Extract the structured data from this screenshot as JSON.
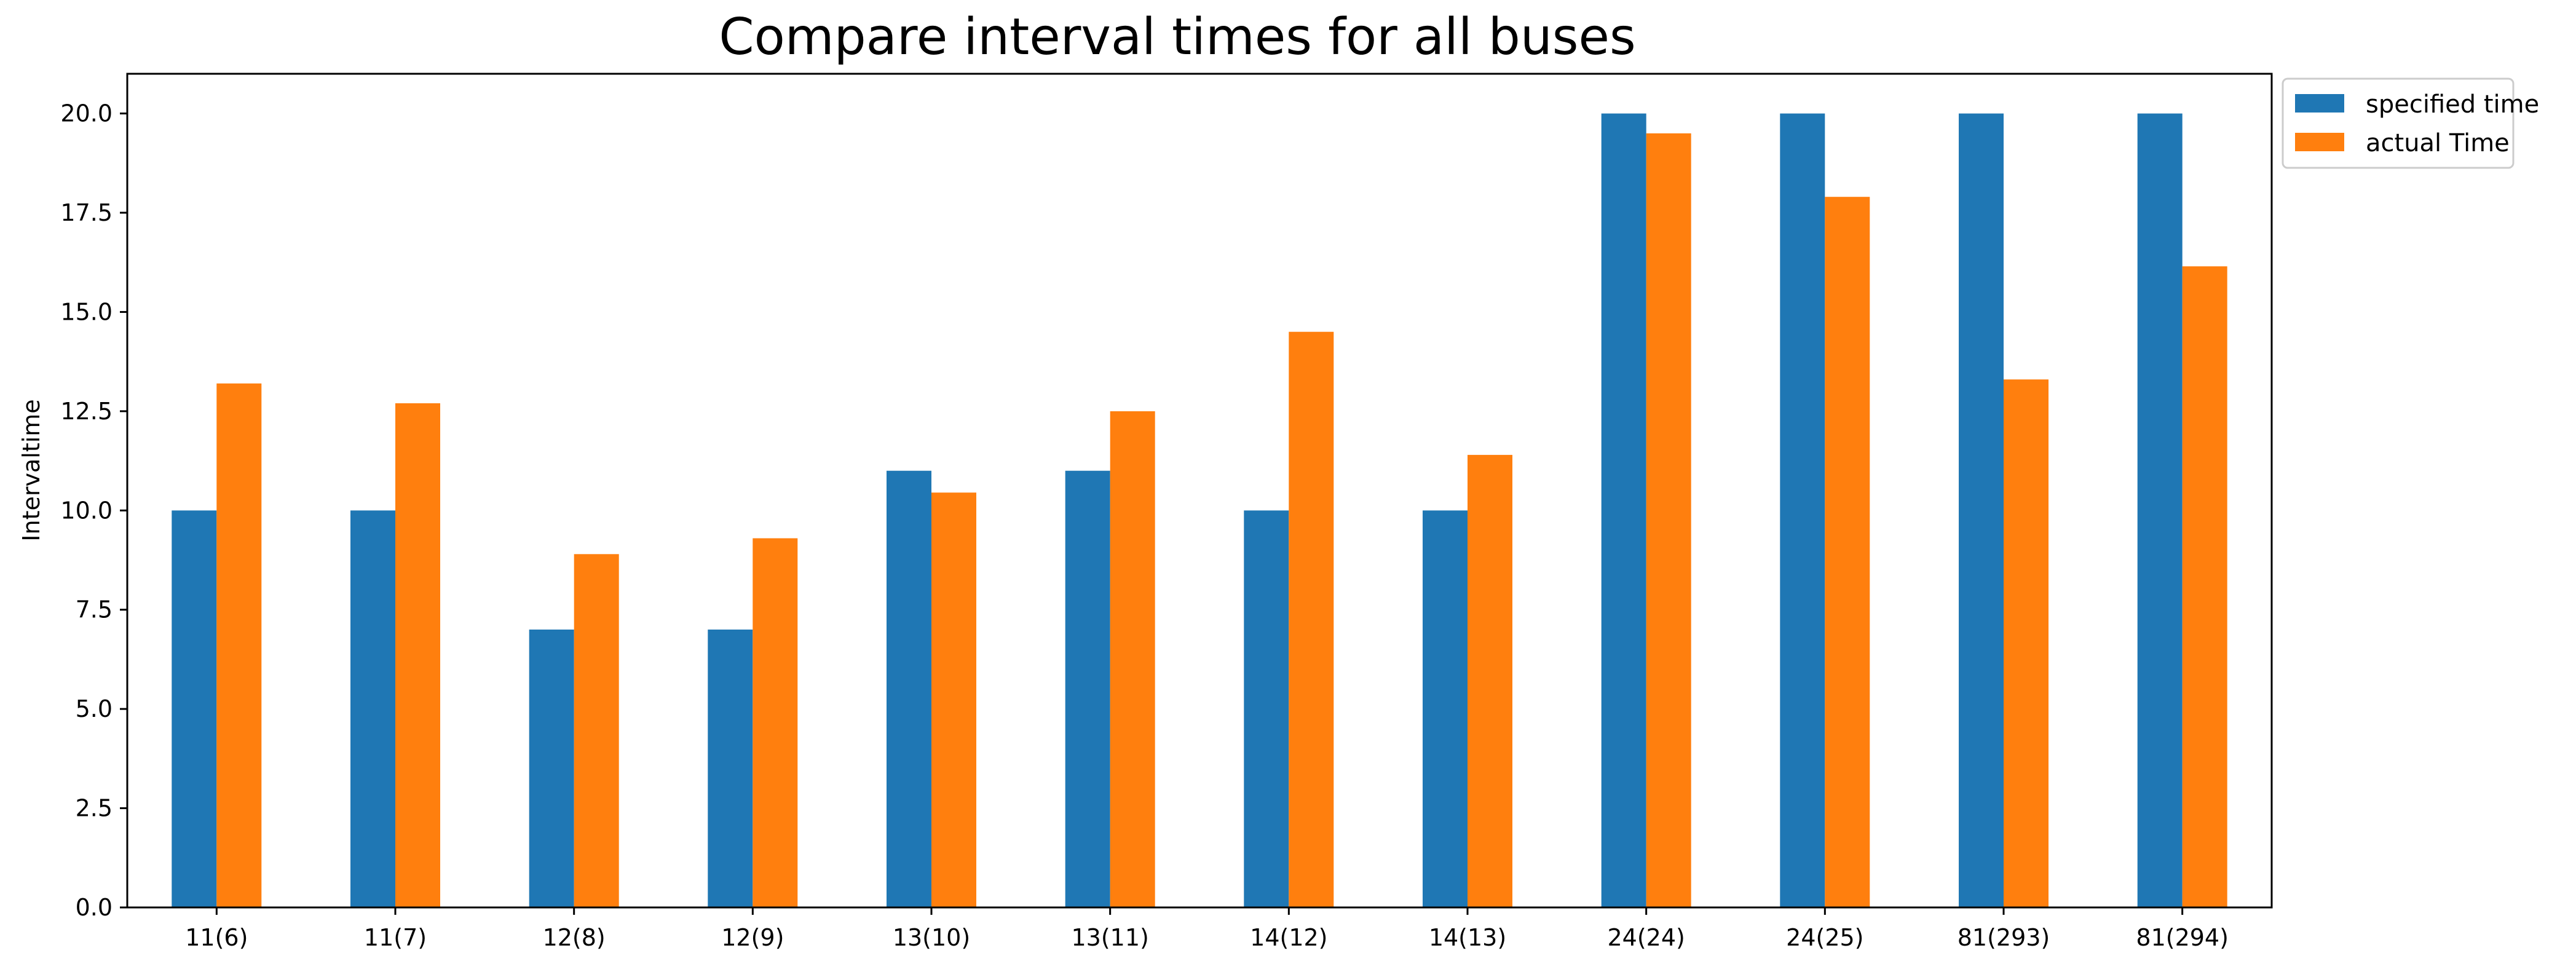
{
  "chart_data": {
    "type": "bar",
    "title": "Compare interval times for all buses",
    "xlabel": "",
    "ylabel": "Intervaltime",
    "ylim": [
      0,
      21
    ],
    "yticks": [
      "0.0",
      "2.5",
      "5.0",
      "7.5",
      "10.0",
      "12.5",
      "15.0",
      "17.5",
      "20.0"
    ],
    "grid": false,
    "legend_position": "outside-top-right",
    "categories": [
      "11(6)",
      "11(7)",
      "12(8)",
      "12(9)",
      "13(10)",
      "13(11)",
      "14(12)",
      "14(13)",
      "24(24)",
      "24(25)",
      "81(293)",
      "81(294)"
    ],
    "series": [
      {
        "name": "specified time",
        "color": "#1f77b4",
        "values": [
          10,
          10,
          7,
          7,
          11,
          11,
          10,
          10,
          20,
          20,
          20,
          20
        ]
      },
      {
        "name": "actual Time",
        "color": "#ff7f0e",
        "values": [
          13.2,
          12.7,
          8.9,
          9.3,
          10.45,
          12.5,
          14.5,
          11.4,
          19.5,
          17.9,
          13.3,
          16.15
        ]
      }
    ]
  }
}
